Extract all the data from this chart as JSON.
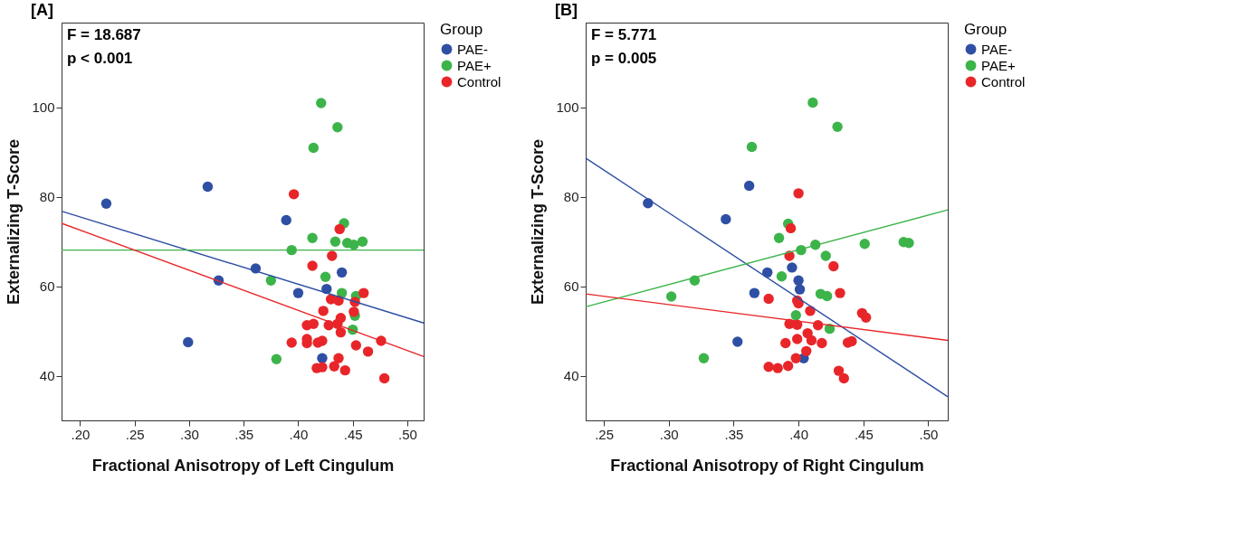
{
  "chart_data": [
    {
      "type": "scatter",
      "title": "[A]",
      "xlabel": "Fractional Anisotropy of Left Cingulum",
      "ylabel": "Externalizing T-Score",
      "legend_title": "Group",
      "legend": "right",
      "grid": false,
      "marker": "circle",
      "annotations": [
        "F = 18.687",
        "p < 0.001"
      ],
      "xlim": [
        0.183,
        0.515
      ],
      "ylim": [
        30,
        119
      ],
      "xticks": [
        {
          "value": 0.2,
          "label": ".20"
        },
        {
          "value": 0.25,
          "label": ".25"
        },
        {
          "value": 0.3,
          "label": ".30"
        },
        {
          "value": 0.35,
          "label": ".35"
        },
        {
          "value": 0.4,
          "label": ".40"
        },
        {
          "value": 0.45,
          "label": ".45"
        },
        {
          "value": 0.5,
          "label": ".50"
        }
      ],
      "yticks": [
        40,
        60,
        80,
        100
      ],
      "series": [
        {
          "name": "PAE-",
          "color": "#2e4fa3",
          "x": [
            0.224,
            0.317,
            0.389,
            0.361,
            0.327,
            0.4,
            0.426,
            0.44,
            0.299,
            0.422
          ],
          "values": [
            78.5,
            82.3,
            74.8,
            64.0,
            61.3,
            58.5,
            59.4,
            63.1,
            47.5,
            43.9
          ]
        },
        {
          "name": "PAE+",
          "color": "#3cb44a",
          "x": [
            0.421,
            0.436,
            0.414,
            0.413,
            0.442,
            0.434,
            0.445,
            0.451,
            0.459,
            0.394,
            0.375,
            0.425,
            0.44,
            0.453,
            0.452,
            0.45,
            0.38
          ],
          "values": [
            101.0,
            95.6,
            91.0,
            70.8,
            74.1,
            70.0,
            69.7,
            69.3,
            70.0,
            68.1,
            61.3,
            62.1,
            58.5,
            57.8,
            53.4,
            50.3,
            43.7
          ]
        },
        {
          "name": "Control",
          "color": "#e8262a",
          "x": [
            0.396,
            0.438,
            0.431,
            0.413,
            0.46,
            0.43,
            0.437,
            0.452,
            0.423,
            0.451,
            0.439,
            0.408,
            0.414,
            0.428,
            0.436,
            0.439,
            0.394,
            0.408,
            0.408,
            0.418,
            0.422,
            0.453,
            0.464,
            0.476,
            0.437,
            0.417,
            0.422,
            0.433,
            0.443,
            0.479
          ],
          "values": [
            80.6,
            72.8,
            66.8,
            64.6,
            58.5,
            57.1,
            56.8,
            56.5,
            54.5,
            54.3,
            52.9,
            51.3,
            51.6,
            51.3,
            51.6,
            49.7,
            47.4,
            48.2,
            47.3,
            47.4,
            47.8,
            46.8,
            45.4,
            47.8,
            43.9,
            41.7,
            41.9,
            42.1,
            41.2,
            39.4
          ]
        },
        {
          "type": "line",
          "marker": "none",
          "color": "#2e4fa3",
          "x": [
            0.183,
            0.515
          ],
          "values": [
            76.8,
            51.8
          ]
        },
        {
          "type": "line",
          "marker": "none",
          "color": "#3cb44a",
          "x": [
            0.183,
            0.515
          ],
          "values": [
            68.1,
            68.1
          ]
        },
        {
          "type": "line",
          "marker": "none",
          "color": "#e8262a",
          "x": [
            0.183,
            0.515
          ],
          "values": [
            74.1,
            44.3
          ]
        }
      ]
    },
    {
      "type": "scatter",
      "title": "[B]",
      "xlabel": "Fractional Anisotropy of Right Cingulum",
      "ylabel": "Externalizing T-Score",
      "legend_title": "Group",
      "legend": "right",
      "grid": false,
      "marker": "circle",
      "annotations": [
        "F = 5.771",
        "p = 0.005"
      ],
      "xlim": [
        0.236,
        0.515
      ],
      "ylim": [
        30,
        119
      ],
      "xticks": [
        {
          "value": 0.25,
          "label": ".25"
        },
        {
          "value": 0.3,
          "label": ".30"
        },
        {
          "value": 0.35,
          "label": ".35"
        },
        {
          "value": 0.4,
          "label": ".40"
        },
        {
          "value": 0.45,
          "label": ".45"
        },
        {
          "value": 0.5,
          "label": ".50"
        }
      ],
      "yticks": [
        40,
        60,
        80,
        100
      ],
      "series": [
        {
          "name": "PAE-",
          "color": "#2e4fa3",
          "x": [
            0.284,
            0.362,
            0.344,
            0.376,
            0.395,
            0.4,
            0.401,
            0.366,
            0.353,
            0.404
          ],
          "values": [
            78.6,
            82.5,
            75.0,
            63.1,
            64.2,
            61.3,
            59.3,
            58.5,
            47.6,
            43.9
          ]
        },
        {
          "name": "PAE+",
          "color": "#3cb44a",
          "x": [
            0.411,
            0.43,
            0.364,
            0.392,
            0.385,
            0.413,
            0.402,
            0.421,
            0.451,
            0.481,
            0.485,
            0.387,
            0.32,
            0.302,
            0.417,
            0.422,
            0.398,
            0.424,
            0.327
          ],
          "values": [
            101.1,
            95.7,
            91.2,
            74.0,
            70.8,
            69.3,
            68.1,
            66.8,
            69.5,
            69.9,
            69.7,
            62.2,
            61.3,
            57.7,
            58.3,
            57.8,
            53.5,
            50.5,
            43.9
          ]
        },
        {
          "name": "Control",
          "color": "#e8262a",
          "x": [
            0.4,
            0.394,
            0.393,
            0.427,
            0.432,
            0.377,
            0.399,
            0.4,
            0.409,
            0.449,
            0.452,
            0.393,
            0.399,
            0.415,
            0.407,
            0.399,
            0.41,
            0.418,
            0.39,
            0.438,
            0.441,
            0.406,
            0.398,
            0.377,
            0.384,
            0.392,
            0.431,
            0.435
          ],
          "values": [
            80.8,
            73.0,
            66.8,
            64.5,
            58.5,
            57.2,
            56.8,
            56.2,
            54.5,
            54.0,
            53.0,
            51.6,
            51.4,
            51.3,
            49.5,
            48.2,
            47.9,
            47.3,
            47.3,
            47.4,
            47.7,
            45.5,
            43.9,
            42.0,
            41.7,
            42.2,
            41.1,
            39.4
          ]
        },
        {
          "type": "line",
          "marker": "none",
          "color": "#2e4fa3",
          "x": [
            0.236,
            0.515
          ],
          "values": [
            88.7,
            35.3
          ]
        },
        {
          "type": "line",
          "marker": "none",
          "color": "#3cb44a",
          "x": [
            0.236,
            0.515
          ],
          "values": [
            55.4,
            77.1
          ]
        },
        {
          "type": "line",
          "marker": "none",
          "color": "#e8262a",
          "x": [
            0.236,
            0.515
          ],
          "values": [
            58.3,
            47.9
          ]
        }
      ]
    }
  ]
}
